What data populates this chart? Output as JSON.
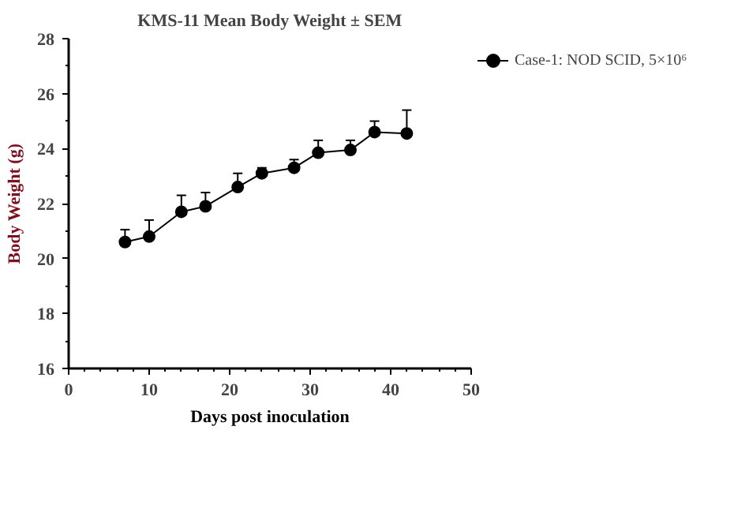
{
  "chart_data": {
    "type": "line",
    "title": "KMS-11 Mean Body Weight ± SEM",
    "xlabel": "Days post inoculation",
    "ylabel": "Body Weight (g)",
    "x": [
      7,
      10,
      14,
      17,
      21,
      24,
      28,
      31,
      35,
      38,
      42
    ],
    "series": [
      {
        "name": "Case-1: NOD SCID, 5×10⁶",
        "color": "#000000",
        "values": [
          20.6,
          20.8,
          21.7,
          21.9,
          22.6,
          23.1,
          23.3,
          23.85,
          23.95,
          24.6,
          24.55
        ],
        "errors": [
          [
            20.6,
            21.05
          ],
          [
            20.8,
            21.4
          ],
          [
            21.7,
            22.3
          ],
          [
            21.9,
            22.4
          ],
          [
            22.6,
            23.1
          ],
          [
            23.1,
            23.3
          ],
          [
            23.3,
            23.6
          ],
          [
            23.85,
            24.3
          ],
          [
            23.95,
            24.3
          ],
          [
            24.6,
            25.0
          ],
          [
            24.55,
            25.4
          ]
        ]
      }
    ],
    "xlim": [
      0,
      50
    ],
    "xticks": [
      0,
      10,
      20,
      30,
      40,
      50
    ],
    "ylim": [
      16,
      28
    ],
    "yticks": [
      16,
      18,
      20,
      22,
      24,
      26,
      28
    ],
    "grid": false,
    "legend": "right",
    "marker": "circle",
    "line_style": "solid"
  }
}
